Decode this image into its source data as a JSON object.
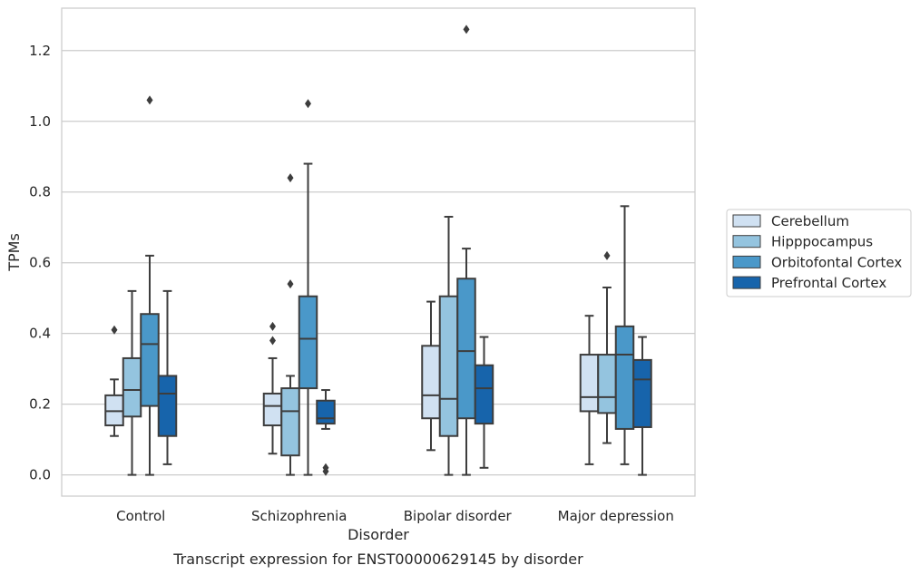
{
  "chart_data": {
    "type": "box",
    "title": "",
    "caption": "Transcript expression for ENST00000629145 by disorder",
    "xlabel": "Disorder",
    "ylabel": "TPMs",
    "ylim": [
      -0.06,
      1.32
    ],
    "yticks": [
      "0.0",
      "0.2",
      "0.4",
      "0.6",
      "0.8",
      "1.0",
      "1.2"
    ],
    "grid": "horizontal",
    "legend_position": "right",
    "categories": [
      "Control",
      "Schizophrenia",
      "Bipolar disorder",
      "Major depression"
    ],
    "series": [
      {
        "name": "Cerebellum",
        "color": "#d0e1f2",
        "boxes": [
          {
            "whisker_low": 0.11,
            "q1": 0.14,
            "median": 0.18,
            "q3": 0.225,
            "whisker_high": 0.27,
            "outliers": [
              0.41
            ]
          },
          {
            "whisker_low": 0.06,
            "q1": 0.14,
            "median": 0.195,
            "q3": 0.23,
            "whisker_high": 0.33,
            "outliers": [
              0.38,
              0.42
            ]
          },
          {
            "whisker_low": 0.07,
            "q1": 0.16,
            "median": 0.225,
            "q3": 0.365,
            "whisker_high": 0.49,
            "outliers": []
          },
          {
            "whisker_low": 0.03,
            "q1": 0.18,
            "median": 0.22,
            "q3": 0.34,
            "whisker_high": 0.45,
            "outliers": []
          }
        ]
      },
      {
        "name": "Hipppocampus",
        "color": "#94c4df",
        "boxes": [
          {
            "whisker_low": 0.0,
            "q1": 0.165,
            "median": 0.24,
            "q3": 0.33,
            "whisker_high": 0.52,
            "outliers": []
          },
          {
            "whisker_low": 0.0,
            "q1": 0.055,
            "median": 0.18,
            "q3": 0.245,
            "whisker_high": 0.28,
            "outliers": [
              0.54,
              0.84
            ]
          },
          {
            "whisker_low": 0.0,
            "q1": 0.11,
            "median": 0.215,
            "q3": 0.505,
            "whisker_high": 0.73,
            "outliers": []
          },
          {
            "whisker_low": 0.09,
            "q1": 0.175,
            "median": 0.22,
            "q3": 0.34,
            "whisker_high": 0.53,
            "outliers": [
              0.62
            ]
          }
        ]
      },
      {
        "name": "Orbitofontal Cortex",
        "color": "#4a98c9",
        "boxes": [
          {
            "whisker_low": 0.0,
            "q1": 0.195,
            "median": 0.37,
            "q3": 0.455,
            "whisker_high": 0.62,
            "outliers": [
              1.06
            ]
          },
          {
            "whisker_low": 0.0,
            "q1": 0.245,
            "median": 0.385,
            "q3": 0.505,
            "whisker_high": 0.88,
            "outliers": [
              1.05
            ]
          },
          {
            "whisker_low": 0.0,
            "q1": 0.16,
            "median": 0.35,
            "q3": 0.555,
            "whisker_high": 0.64,
            "outliers": [
              1.26
            ]
          },
          {
            "whisker_low": 0.03,
            "q1": 0.13,
            "median": 0.34,
            "q3": 0.42,
            "whisker_high": 0.76,
            "outliers": []
          }
        ]
      },
      {
        "name": "Prefrontal Cortex",
        "color": "#1764ab",
        "boxes": [
          {
            "whisker_low": 0.03,
            "q1": 0.11,
            "median": 0.23,
            "q3": 0.28,
            "whisker_high": 0.52,
            "outliers": []
          },
          {
            "whisker_low": 0.13,
            "q1": 0.145,
            "median": 0.16,
            "q3": 0.21,
            "whisker_high": 0.24,
            "outliers": [
              0.01,
              0.02
            ]
          },
          {
            "whisker_low": 0.02,
            "q1": 0.145,
            "median": 0.245,
            "q3": 0.31,
            "whisker_high": 0.39,
            "outliers": []
          },
          {
            "whisker_low": 0.0,
            "q1": 0.135,
            "median": 0.27,
            "q3": 0.325,
            "whisker_high": 0.39,
            "outliers": []
          }
        ]
      }
    ]
  }
}
